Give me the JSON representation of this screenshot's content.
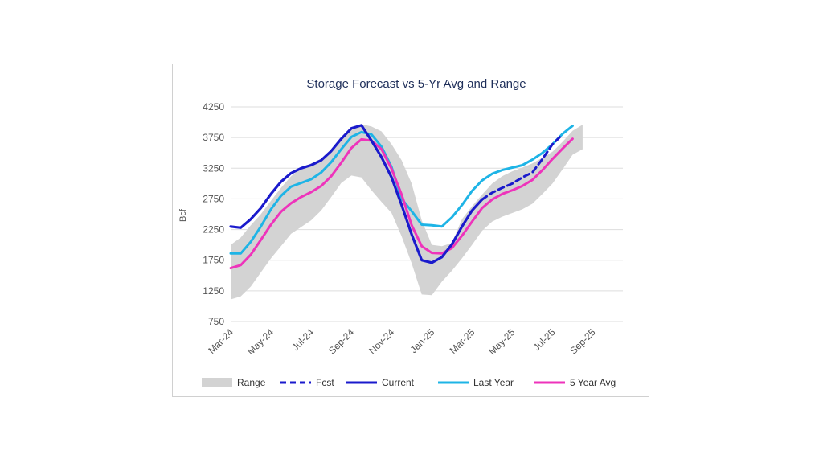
{
  "chart_data": {
    "type": "line",
    "title": "Storage Forecast vs 5-Yr Avg and Range",
    "ylabel": "Bcf",
    "xlabel": "",
    "ylim": [
      750,
      4250
    ],
    "y_ticks": [
      "4250",
      "3750",
      "3250",
      "2750",
      "2250",
      "1750",
      "1250",
      "750"
    ],
    "x_tick_labels": [
      "Mar-24",
      "May-24",
      "Jul-24",
      "Sep-24",
      "Nov-24",
      "Jan-25",
      "Mar-25",
      "May-25",
      "Jul-25",
      "Sep-25"
    ],
    "grid": "horizontal",
    "legend_position": "bottom",
    "legend": [
      "Range",
      "Fcst",
      "Current",
      "Last Year",
      "5 Year Avg"
    ],
    "colors": {
      "range": "#d3d3d3",
      "fcst": "#1a1acc",
      "current": "#1a1acc",
      "last_year": "#1eb4e6",
      "avg": "#ee33bb"
    },
    "x_months": [
      0,
      0.5,
      1,
      1.5,
      2,
      2.5,
      3,
      3.5,
      4,
      4.5,
      5,
      5.5,
      6,
      6.5,
      7,
      7.5,
      8,
      8.5,
      9,
      9.5,
      10,
      10.5,
      11,
      11.5,
      12,
      12.5,
      13,
      13.5,
      14,
      14.5,
      15,
      15.5,
      16,
      16.5,
      17,
      17.5,
      18,
      18.5,
      19,
      19.5
    ],
    "range_high": [
      2000,
      2120,
      2320,
      2500,
      2720,
      2930,
      3120,
      3250,
      3330,
      3400,
      3530,
      3720,
      3900,
      3970,
      3930,
      3850,
      3640,
      3380,
      3000,
      2400,
      2000,
      1980,
      2030,
      2420,
      2630,
      2820,
      3000,
      3120,
      3200,
      3260,
      3330,
      3420,
      3520,
      3680,
      3860,
      3960
    ],
    "range_low": [
      1110,
      1160,
      1320,
      1550,
      1780,
      1980,
      2180,
      2290,
      2400,
      2560,
      2780,
      3010,
      3130,
      3100,
      2890,
      2700,
      2520,
      2140,
      1700,
      1190,
      1180,
      1400,
      1580,
      1780,
      2000,
      2230,
      2380,
      2460,
      2520,
      2580,
      2670,
      2830,
      3000,
      3230,
      3470,
      3560
    ],
    "series": [
      {
        "name": "Current",
        "values": [
          2300,
          2280,
          2420,
          2600,
          2830,
          3030,
          3170,
          3250,
          3300,
          3380,
          3530,
          3730,
          3900,
          3950,
          3700,
          3430,
          3100,
          2650,
          2170,
          1750,
          1710,
          1800,
          2010,
          2300,
          2560,
          2740
        ]
      },
      {
        "name": "Fcst",
        "values": [
          null,
          null,
          null,
          null,
          null,
          null,
          null,
          null,
          null,
          null,
          null,
          null,
          null,
          null,
          null,
          null,
          null,
          null,
          null,
          null,
          null,
          null,
          null,
          null,
          null,
          2740,
          2850,
          2930,
          3000,
          3100,
          3180,
          3400,
          3640,
          3800
        ]
      },
      {
        "name": "Last Year",
        "values": [
          1860,
          1860,
          2050,
          2300,
          2580,
          2800,
          2950,
          3010,
          3070,
          3180,
          3350,
          3560,
          3760,
          3840,
          3800,
          3600,
          3270,
          2750,
          2550,
          2330,
          2320,
          2300,
          2450,
          2650,
          2880,
          3050,
          3160,
          3220,
          3260,
          3300,
          3390,
          3500,
          3640,
          3810,
          3940
        ]
      },
      {
        "name": "5 Year Avg",
        "values": [
          1620,
          1670,
          1840,
          2080,
          2330,
          2540,
          2680,
          2780,
          2860,
          2960,
          3120,
          3340,
          3580,
          3720,
          3700,
          3560,
          3240,
          2820,
          2320,
          1980,
          1870,
          1860,
          1950,
          2150,
          2380,
          2600,
          2740,
          2830,
          2890,
          2960,
          3060,
          3220,
          3400,
          3570,
          3730
        ]
      }
    ]
  }
}
